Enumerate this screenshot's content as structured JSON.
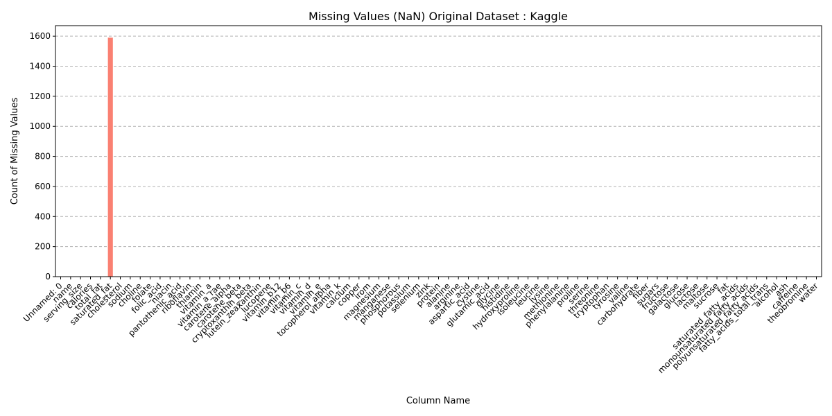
{
  "chart_data": {
    "type": "bar",
    "title": "Missing Values (NaN) Original Dataset : Kaggle",
    "xlabel": "Column Name",
    "ylabel": "Count of Missing Values",
    "ylim": [
      0,
      1670
    ],
    "yticks": [
      0,
      200,
      400,
      600,
      800,
      1000,
      1200,
      1400,
      1600
    ],
    "grid": "y-dashed",
    "bar_color": "#fa8072",
    "categories": [
      "Unnamed: 0",
      "name",
      "serving_size",
      "calories",
      "total_fat",
      "saturated_fat",
      "cholesterol",
      "sodium",
      "choline",
      "folate",
      "folic_acid",
      "niacin",
      "pantothenic_acid",
      "riboflavin",
      "thiamin",
      "vitamin_a",
      "vitamin_a_rae",
      "carotene_alpha",
      "carotene_beta",
      "cryptoxanthin_beta",
      "lutein_zeaxanthin",
      "lucopene",
      "vitamin_b12",
      "vitamin_b6",
      "vitamin_c",
      "vitamin_d",
      "vitamin_e",
      "tocopherol_alpha",
      "vitamin_k",
      "calcium",
      "copper",
      "irom",
      "magnesium",
      "manganese",
      "phosphorous",
      "potassium",
      "selenium",
      "zink",
      "protein",
      "alanine",
      "arginine",
      "aspartic_acid",
      "cystine",
      "glutamic_acid",
      "glycine",
      "histidine",
      "hydroxyproline",
      "isoleucine",
      "leucine",
      "lysine",
      "methionine",
      "phenylalanine",
      "proline",
      "serine",
      "threonine",
      "tryptophan",
      "tyrosine",
      "valine",
      "carbohydrate",
      "fiber",
      "sugars",
      "fructose",
      "galactose",
      "glucose",
      "lactose",
      "maltose",
      "sucrose",
      "fat",
      "saturated_fatty_acids",
      "monounsaturated_fatty_acids",
      "polyunsaturated_fatty_acids",
      "fatty_acids_total_trans",
      "alcohol",
      "ash",
      "caffeine",
      "theobromine",
      "water"
    ],
    "values": [
      0,
      0,
      0,
      0,
      0,
      1590,
      0,
      0,
      0,
      0,
      0,
      0,
      0,
      0,
      0,
      0,
      0,
      0,
      0,
      0,
      0,
      0,
      0,
      0,
      0,
      0,
      0,
      0,
      0,
      0,
      0,
      0,
      0,
      0,
      0,
      0,
      0,
      0,
      0,
      0,
      0,
      0,
      0,
      0,
      0,
      0,
      0,
      0,
      0,
      0,
      0,
      0,
      0,
      0,
      0,
      0,
      0,
      0,
      0,
      0,
      0,
      0,
      0,
      0,
      0,
      0,
      0,
      0,
      0,
      0,
      0,
      0,
      0,
      0,
      0,
      0,
      0
    ]
  }
}
